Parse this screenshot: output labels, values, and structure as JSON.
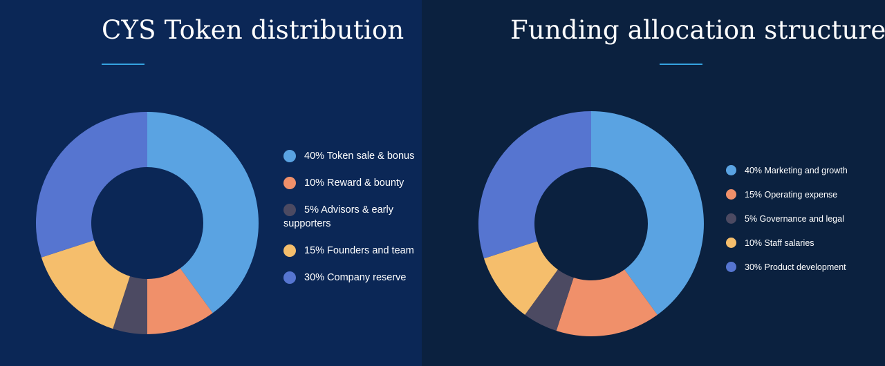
{
  "colors": {
    "light_blue": "#5aa3e2",
    "salmon": "#f0906a",
    "dark_slate": "#4c4a62",
    "yellow": "#f5be6c",
    "royal_blue": "#5675d0",
    "accent_line": "#35a3e0"
  },
  "chart_data": [
    {
      "type": "pie",
      "donut": true,
      "title": "CYS Token distribution",
      "legend_position": "right",
      "slices": [
        {
          "label": "40% Token sale & bonus",
          "value": 40,
          "color": "#5aa3e2"
        },
        {
          "label": "10% Reward & bounty",
          "value": 10,
          "color": "#f0906a"
        },
        {
          "label": "5% Advisors & early supporters",
          "value": 5,
          "color": "#4c4a62"
        },
        {
          "label": "15% Founders and team",
          "value": 15,
          "color": "#f5be6c"
        },
        {
          "label": "30% Company reserve",
          "value": 30,
          "color": "#5675d0"
        }
      ]
    },
    {
      "type": "pie",
      "donut": true,
      "title": "Funding allocation structure",
      "legend_position": "right",
      "slices": [
        {
          "label": "40% Marketing and growth",
          "value": 40,
          "color": "#5aa3e2"
        },
        {
          "label": "15% Operating expense",
          "value": 15,
          "color": "#f0906a"
        },
        {
          "label": "5% Governance and legal",
          "value": 5,
          "color": "#4c4a62"
        },
        {
          "label": "10% Staff salaries",
          "value": 10,
          "color": "#f5be6c"
        },
        {
          "label": "30% Product development",
          "value": 30,
          "color": "#5675d0"
        }
      ]
    }
  ]
}
